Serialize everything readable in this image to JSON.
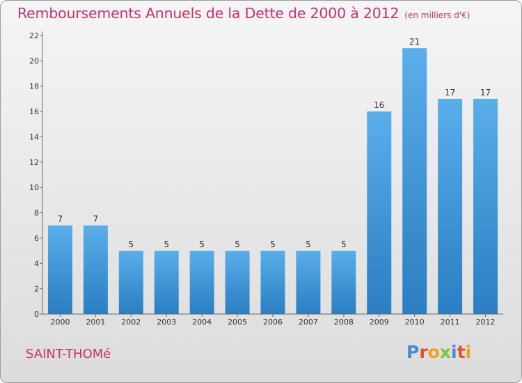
{
  "title": "Remboursements Annuels de la Dette de 2000 à 2012",
  "subtitle": "(en milliers d'€)",
  "commune": "SAINT-THOMé",
  "logo": {
    "letters": [
      "P",
      "r",
      "o",
      "x",
      "i",
      "t",
      "i"
    ],
    "colors": [
      "#3a8fd8",
      "#e0522a",
      "#f0a21a",
      "#7cc43a",
      "#3a8fd8",
      "#e0522a",
      "#f0a21a"
    ]
  },
  "colors": {
    "bar_light": "#5aaeea",
    "bar_dark": "#2a7ec2",
    "title": "#c8326a"
  },
  "chart_data": {
    "type": "bar",
    "categories": [
      "2000",
      "2001",
      "2002",
      "2003",
      "2004",
      "2005",
      "2006",
      "2007",
      "2008",
      "2009",
      "2010",
      "2011",
      "2012"
    ],
    "values": [
      7,
      7,
      5,
      5,
      5,
      5,
      5,
      5,
      5,
      16,
      21,
      17,
      17
    ],
    "ylim": [
      0,
      22
    ],
    "yticks": [
      0,
      2,
      4,
      6,
      8,
      10,
      12,
      14,
      16,
      18,
      20,
      22
    ],
    "grid": false
  }
}
